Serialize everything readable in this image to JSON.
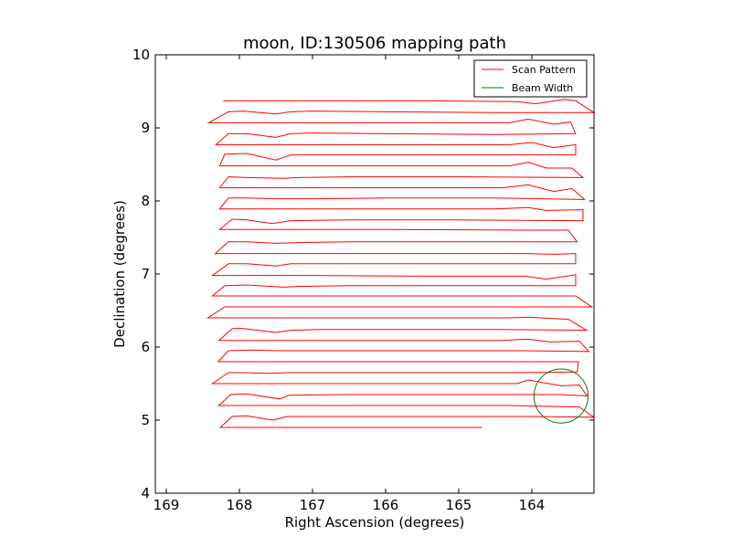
{
  "chart_data": {
    "type": "line",
    "title": "moon, ID:130506 mapping path",
    "xlabel": "Right Ascension (degrees)",
    "ylabel": "Declination (degrees)",
    "xlim": [
      169.15,
      163.15
    ],
    "ylim": [
      4,
      10
    ],
    "x_axis_inverted": true,
    "xticks": [
      169,
      168,
      167,
      166,
      165,
      164
    ],
    "xtick_labels": [
      "169",
      "168",
      "167",
      "166",
      "165",
      "164"
    ],
    "yticks": [
      4,
      5,
      6,
      7,
      8,
      9,
      10
    ],
    "ytick_labels": [
      "4",
      "5",
      "6",
      "7",
      "8",
      "9",
      "10"
    ],
    "grid": false,
    "legend": {
      "placement": "top-right",
      "entries": [
        {
          "label": "Scan Pattern",
          "color": "#ff0000"
        },
        {
          "label": "Beam Width",
          "color": "#008000"
        }
      ]
    },
    "series": [
      {
        "name": "Scan Pattern",
        "color": "#ff0000",
        "points": [
          [
            164.68,
            4.9
          ],
          [
            165.0,
            4.9
          ],
          [
            166.0,
            4.9
          ],
          [
            167.0,
            4.9
          ],
          [
            168.26,
            4.9
          ],
          [
            168.1,
            5.05
          ],
          [
            167.9,
            5.06
          ],
          [
            167.55,
            5.0
          ],
          [
            167.35,
            5.05
          ],
          [
            166.5,
            5.05
          ],
          [
            165.0,
            5.05
          ],
          [
            164.0,
            5.05
          ],
          [
            163.15,
            5.04
          ],
          [
            163.35,
            5.18
          ],
          [
            164.3,
            5.2
          ],
          [
            166.0,
            5.2
          ],
          [
            167.5,
            5.2
          ],
          [
            168.28,
            5.2
          ],
          [
            168.12,
            5.35
          ],
          [
            167.9,
            5.36
          ],
          [
            167.45,
            5.29
          ],
          [
            167.32,
            5.34
          ],
          [
            166.5,
            5.35
          ],
          [
            165.0,
            5.35
          ],
          [
            164.4,
            5.35
          ],
          [
            163.6,
            5.35
          ],
          [
            163.24,
            5.33
          ],
          [
            163.35,
            5.48
          ],
          [
            163.6,
            5.47
          ],
          [
            164.05,
            5.55
          ],
          [
            164.2,
            5.5
          ],
          [
            166.0,
            5.5
          ],
          [
            168.37,
            5.5
          ],
          [
            168.15,
            5.65
          ],
          [
            167.95,
            5.65
          ],
          [
            167.6,
            5.64
          ],
          [
            167.35,
            5.65
          ],
          [
            166.5,
            5.65
          ],
          [
            165.0,
            5.65
          ],
          [
            164.2,
            5.65
          ],
          [
            163.38,
            5.66
          ],
          [
            163.36,
            5.8
          ],
          [
            165.0,
            5.8
          ],
          [
            166.5,
            5.8
          ],
          [
            168.29,
            5.8
          ],
          [
            168.15,
            5.95
          ],
          [
            167.8,
            5.96
          ],
          [
            167.5,
            5.95
          ],
          [
            166.5,
            5.95
          ],
          [
            165.0,
            5.95
          ],
          [
            164.1,
            5.95
          ],
          [
            163.22,
            5.94
          ],
          [
            163.35,
            6.08
          ],
          [
            163.75,
            6.07
          ],
          [
            164.05,
            6.11
          ],
          [
            164.4,
            6.09
          ],
          [
            166.0,
            6.09
          ],
          [
            168.28,
            6.09
          ],
          [
            168.1,
            6.25
          ],
          [
            168.0,
            6.26
          ],
          [
            167.5,
            6.2
          ],
          [
            167.3,
            6.23
          ],
          [
            166.9,
            6.24
          ],
          [
            166.0,
            6.24
          ],
          [
            164.5,
            6.24
          ],
          [
            163.25,
            6.23
          ],
          [
            163.5,
            6.38
          ],
          [
            164.05,
            6.41
          ],
          [
            164.3,
            6.4
          ],
          [
            166.0,
            6.4
          ],
          [
            168.43,
            6.4
          ],
          [
            168.2,
            6.55
          ],
          [
            167.8,
            6.55
          ],
          [
            166.5,
            6.55
          ],
          [
            165.0,
            6.55
          ],
          [
            164.0,
            6.55
          ],
          [
            163.18,
            6.55
          ],
          [
            163.4,
            6.7
          ],
          [
            164.0,
            6.7
          ],
          [
            166.0,
            6.7
          ],
          [
            168.37,
            6.7
          ],
          [
            168.2,
            6.84
          ],
          [
            167.9,
            6.85
          ],
          [
            167.4,
            6.82
          ],
          [
            167.2,
            6.83
          ],
          [
            166.5,
            6.84
          ],
          [
            165.0,
            6.84
          ],
          [
            164.0,
            6.84
          ],
          [
            163.4,
            6.84
          ],
          [
            163.4,
            6.99
          ],
          [
            163.8,
            6.93
          ],
          [
            164.1,
            6.97
          ],
          [
            165.5,
            6.97
          ],
          [
            167.0,
            6.98
          ],
          [
            168.37,
            6.98
          ],
          [
            168.15,
            7.14
          ],
          [
            167.9,
            7.14
          ],
          [
            167.5,
            7.11
          ],
          [
            167.3,
            7.14
          ],
          [
            166.0,
            7.14
          ],
          [
            164.5,
            7.14
          ],
          [
            163.4,
            7.14
          ],
          [
            163.4,
            7.28
          ],
          [
            163.7,
            7.27
          ],
          [
            164.1,
            7.28
          ],
          [
            165.5,
            7.28
          ],
          [
            167.0,
            7.28
          ],
          [
            168.33,
            7.28
          ],
          [
            168.15,
            7.44
          ],
          [
            167.9,
            7.44
          ],
          [
            167.5,
            7.42
          ],
          [
            167.2,
            7.43
          ],
          [
            166.5,
            7.44
          ],
          [
            165.0,
            7.44
          ],
          [
            163.38,
            7.44
          ],
          [
            163.5,
            7.6
          ],
          [
            164.0,
            7.6
          ],
          [
            166.0,
            7.61
          ],
          [
            168.27,
            7.61
          ],
          [
            168.1,
            7.75
          ],
          [
            167.9,
            7.74
          ],
          [
            167.55,
            7.69
          ],
          [
            167.3,
            7.73
          ],
          [
            166.5,
            7.74
          ],
          [
            165.0,
            7.74
          ],
          [
            163.3,
            7.73
          ],
          [
            163.3,
            7.88
          ],
          [
            163.8,
            7.87
          ],
          [
            164.05,
            7.91
          ],
          [
            164.5,
            7.89
          ],
          [
            166.0,
            7.89
          ],
          [
            168.27,
            7.89
          ],
          [
            168.15,
            8.04
          ],
          [
            167.9,
            8.04
          ],
          [
            167.5,
            8.03
          ],
          [
            167.0,
            8.03
          ],
          [
            166.0,
            8.04
          ],
          [
            164.5,
            8.04
          ],
          [
            163.28,
            8.02
          ],
          [
            163.45,
            8.17
          ],
          [
            163.7,
            8.13
          ],
          [
            164.05,
            8.22
          ],
          [
            164.4,
            8.18
          ],
          [
            166.0,
            8.18
          ],
          [
            168.27,
            8.18
          ],
          [
            168.15,
            8.33
          ],
          [
            167.9,
            8.32
          ],
          [
            167.4,
            8.31
          ],
          [
            167.2,
            8.32
          ],
          [
            166.5,
            8.33
          ],
          [
            165.0,
            8.33
          ],
          [
            163.3,
            8.32
          ],
          [
            163.45,
            8.45
          ],
          [
            163.8,
            8.45
          ],
          [
            164.05,
            8.53
          ],
          [
            164.3,
            8.48
          ],
          [
            166.0,
            8.48
          ],
          [
            168.27,
            8.48
          ],
          [
            168.2,
            8.64
          ],
          [
            167.9,
            8.65
          ],
          [
            167.5,
            8.56
          ],
          [
            167.3,
            8.63
          ],
          [
            166.5,
            8.63
          ],
          [
            165.0,
            8.63
          ],
          [
            163.4,
            8.63
          ],
          [
            163.4,
            8.77
          ],
          [
            163.7,
            8.73
          ],
          [
            164.0,
            8.8
          ],
          [
            164.3,
            8.77
          ],
          [
            166.0,
            8.77
          ],
          [
            168.32,
            8.77
          ],
          [
            168.15,
            8.92
          ],
          [
            167.9,
            8.92
          ],
          [
            167.5,
            8.87
          ],
          [
            167.3,
            8.92
          ],
          [
            167.0,
            8.93
          ],
          [
            166.0,
            8.92
          ],
          [
            164.5,
            8.91
          ],
          [
            163.4,
            8.92
          ],
          [
            163.47,
            9.08
          ],
          [
            163.7,
            9.05
          ],
          [
            164.05,
            9.12
          ],
          [
            164.3,
            9.07
          ],
          [
            166.0,
            9.07
          ],
          [
            168.42,
            9.07
          ],
          [
            168.15,
            9.22
          ],
          [
            167.95,
            9.23
          ],
          [
            167.5,
            9.19
          ],
          [
            167.3,
            9.22
          ],
          [
            167.0,
            9.23
          ],
          [
            166.0,
            9.22
          ],
          [
            164.5,
            9.21
          ],
          [
            163.15,
            9.21
          ],
          [
            163.4,
            9.37
          ],
          [
            163.55,
            9.39
          ],
          [
            163.95,
            9.33
          ],
          [
            164.2,
            9.36
          ],
          [
            165.5,
            9.37
          ],
          [
            168.22,
            9.37
          ]
        ]
      },
      {
        "name": "Beam Width",
        "color": "#008000",
        "shape": "circle",
        "center": [
          163.6,
          5.33
        ],
        "radius": 0.37
      }
    ]
  }
}
